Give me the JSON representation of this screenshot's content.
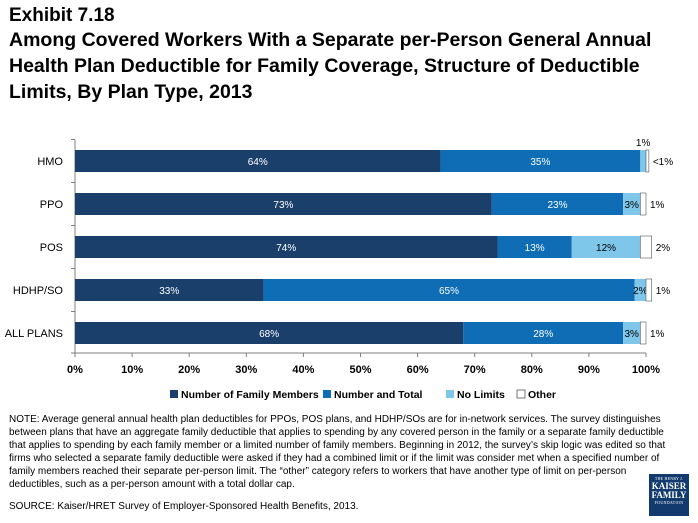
{
  "header": {
    "exhibit": "Exhibit 7.18",
    "title": "Among Covered Workers With a Separate per-Person General Annual Health Plan Deductible for Family Coverage, Structure of Deductible Limits, By Plan Type, 2013"
  },
  "chart_data": {
    "type": "bar",
    "orientation": "horizontal",
    "stacked": true,
    "categories": [
      "HMO",
      "PPO",
      "POS",
      "HDHP/SO",
      "ALL PLANS"
    ],
    "series": [
      {
        "name": "Number of Family Members",
        "color": "#1b3f6b",
        "values": [
          64,
          73,
          74,
          33,
          68
        ],
        "labels": [
          "64%",
          "73%",
          "74%",
          "33%",
          "68%"
        ]
      },
      {
        "name": "Number and Total",
        "color": "#0f6db5",
        "values": [
          35,
          23,
          13,
          65,
          28
        ],
        "labels": [
          "35%",
          "23%",
          "13%",
          "65%",
          "28%"
        ]
      },
      {
        "name": "No Limits",
        "color": "#7ec6ea",
        "values": [
          1,
          3,
          12,
          2,
          3
        ],
        "labels": [
          "",
          "3%",
          "12%",
          "2%",
          "3%"
        ]
      },
      {
        "name": "Other",
        "color": "#ffffff",
        "values": [
          0.5,
          1,
          2,
          1,
          1
        ],
        "labels": [
          "<1%",
          "1%",
          "2%",
          "1%",
          "1%"
        ]
      }
    ],
    "annotations": [
      {
        "text": "1%",
        "category": "HMO",
        "series": "No Limits"
      }
    ],
    "xlim": [
      0,
      100
    ],
    "xticks": [
      "0%",
      "10%",
      "20%",
      "30%",
      "40%",
      "50%",
      "60%",
      "70%",
      "80%",
      "90%",
      "100%"
    ],
    "legend_position": "bottom",
    "grid": false
  },
  "footer": {
    "note": "NOTE: Average general annual health plan deductibles for PPOs, POS plans, and HDHP/SOs are for in-network services. The survey distinguishes between plans that have an aggregate family deductible that applies to spending by any covered person in the family or a separate family deductible that applies to spending by each family member or a limited number of family members.  Beginning in 2012, the survey’s skip logic was edited so that firms who selected a separate family deductible were asked if they had a combined limit or if the limit was consider met when a specified number of family members reached their separate per-person limit. The “other” category refers to workers that have another type of limit on per-person deductibles, such as a per-person amount with a total dollar cap.",
    "source": "SOURCE:  Kaiser/HRET Survey of Employer-Sponsored Health Benefits, 2013."
  },
  "logo": {
    "line1": "THE HENRY J.",
    "line2": "KAISER",
    "line3": "FAMILY",
    "line4": "FOUNDATION"
  }
}
